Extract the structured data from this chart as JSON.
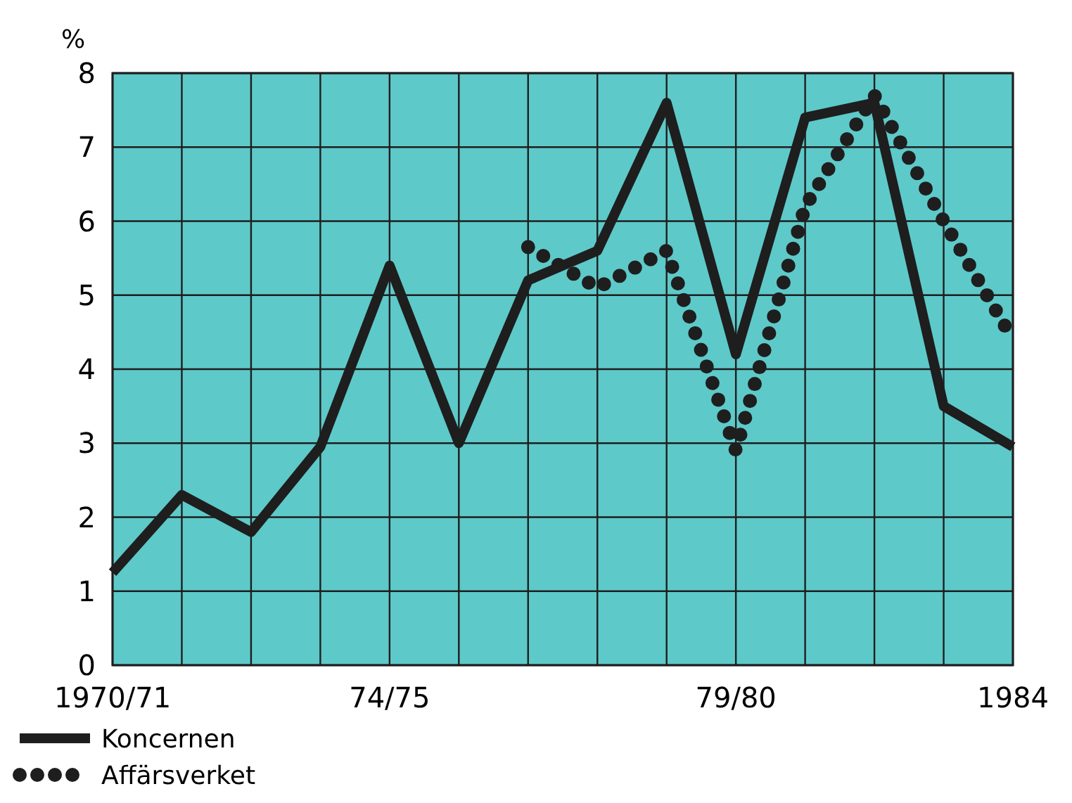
{
  "chart_data": {
    "type": "line",
    "ylabel": "%",
    "categories": [
      "1970/71",
      null,
      null,
      null,
      "74/75",
      null,
      null,
      null,
      null,
      "79/80",
      null,
      null,
      null,
      "1984"
    ],
    "series": [
      {
        "name": "Koncernen",
        "color": "#1e1e1e",
        "line_style": "solid",
        "values": [
          1.25,
          2.3,
          1.8,
          2.95,
          5.4,
          3.0,
          5.2,
          5.6,
          7.6,
          4.2,
          7.4,
          7.6,
          3.5,
          2.95
        ]
      },
      {
        "name": "Affärsverket",
        "color": "#1e1e1e",
        "line_style": "dotted",
        "values": [
          null,
          null,
          null,
          null,
          null,
          null,
          5.65,
          5.1,
          5.6,
          2.9,
          6.2,
          7.7,
          6.0,
          4.4
        ]
      }
    ],
    "ylim": [
      0,
      8
    ],
    "yticks": [
      0,
      1,
      2,
      3,
      4,
      5,
      6,
      7,
      8
    ],
    "grid": true,
    "legend": "bottom",
    "marker": "none"
  }
}
